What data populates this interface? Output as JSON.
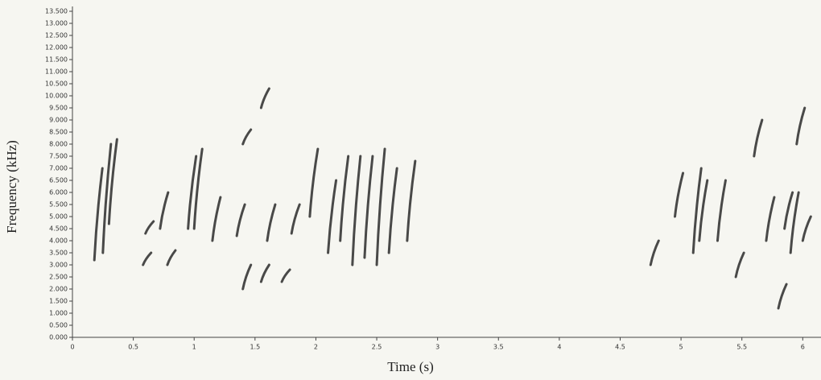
{
  "chart_data": {
    "type": "spectrogram",
    "x_label": "Time (s)",
    "y_label": "Frequency (kHz)",
    "xlim": [
      0,
      6.15
    ],
    "ylim": [
      0,
      13.7
    ],
    "xticks": [
      0,
      0.5,
      1,
      1.5,
      2,
      2.5,
      3,
      3.5,
      4,
      4.5,
      5,
      5.5,
      6
    ],
    "yticks": [
      {
        "value": 0,
        "label": "0.000"
      },
      {
        "value": 0.5,
        "label": "0.500"
      },
      {
        "value": 1,
        "label": "1.000"
      },
      {
        "value": 1.5,
        "label": "1.500"
      },
      {
        "value": 2,
        "label": "2.000"
      },
      {
        "value": 2.5,
        "label": "2.500"
      },
      {
        "value": 3,
        "label": "3.000"
      },
      {
        "value": 3.5,
        "label": "3.500"
      },
      {
        "value": 4,
        "label": "4.000"
      },
      {
        "value": 4.5,
        "label": "4.500"
      },
      {
        "value": 5,
        "label": "5.000"
      },
      {
        "value": 5.5,
        "label": "5.500"
      },
      {
        "value": 6,
        "label": "6.000"
      },
      {
        "value": 6.5,
        "label": "6.500"
      },
      {
        "value": 7,
        "label": "7.000"
      },
      {
        "value": 7.5,
        "label": "7.500"
      },
      {
        "value": 8,
        "label": "8.000"
      },
      {
        "value": 8.5,
        "label": "8.500"
      },
      {
        "value": 9,
        "label": "9.000"
      },
      {
        "value": 9.5,
        "label": "9.500"
      },
      {
        "value": 10,
        "label": "10.000"
      },
      {
        "value": 10.5,
        "label": "10.500"
      },
      {
        "value": 11,
        "label": "11.000"
      },
      {
        "value": 11.5,
        "label": "11.500"
      },
      {
        "value": 12,
        "label": "12.000"
      },
      {
        "value": 12.5,
        "label": "12.500"
      },
      {
        "value": 13,
        "label": "13.000"
      },
      {
        "value": 13.5,
        "label": "13.500"
      }
    ],
    "color": "#2a2a2a",
    "strokes": {
      "t": [
        0.18,
        0.25,
        0.3,
        0.58,
        0.6,
        0.78,
        0.72,
        0.95,
        1.0,
        1.15,
        1.35,
        1.4,
        1.55,
        1.72,
        1.6,
        1.8,
        1.95,
        2.1,
        2.2,
        2.3,
        2.4,
        2.5,
        2.6,
        2.75,
        4.75,
        4.95,
        5.1,
        5.15,
        5.3,
        5.45,
        5.7,
        5.85,
        5.9,
        6.0,
        5.95,
        5.8,
        5.6,
        1.55,
        1.4
      ],
      "f_low": [
        3.2,
        3.5,
        4.7,
        3.0,
        4.3,
        3.0,
        4.5,
        4.5,
        4.5,
        4.0,
        4.2,
        2.0,
        2.3,
        2.3,
        4.0,
        4.3,
        5.0,
        3.5,
        4.0,
        3.0,
        3.3,
        3.0,
        3.5,
        4.0,
        3.0,
        5.0,
        3.5,
        4.0,
        4.0,
        2.5,
        4.0,
        4.5,
        3.5,
        4.0,
        8.0,
        1.2,
        7.5,
        9.5,
        8.0
      ],
      "f_high": [
        7.0,
        8.0,
        8.2,
        3.5,
        4.8,
        3.6,
        6.0,
        7.5,
        7.8,
        5.8,
        5.5,
        3.0,
        3.0,
        2.8,
        5.5,
        5.5,
        7.8,
        6.5,
        7.5,
        7.5,
        7.5,
        7.8,
        7.0,
        7.3,
        4.0,
        6.8,
        7.0,
        6.5,
        6.5,
        3.5,
        5.8,
        6.0,
        6.0,
        5.0,
        9.5,
        2.2,
        9.0,
        10.3,
        8.6
      ]
    }
  }
}
